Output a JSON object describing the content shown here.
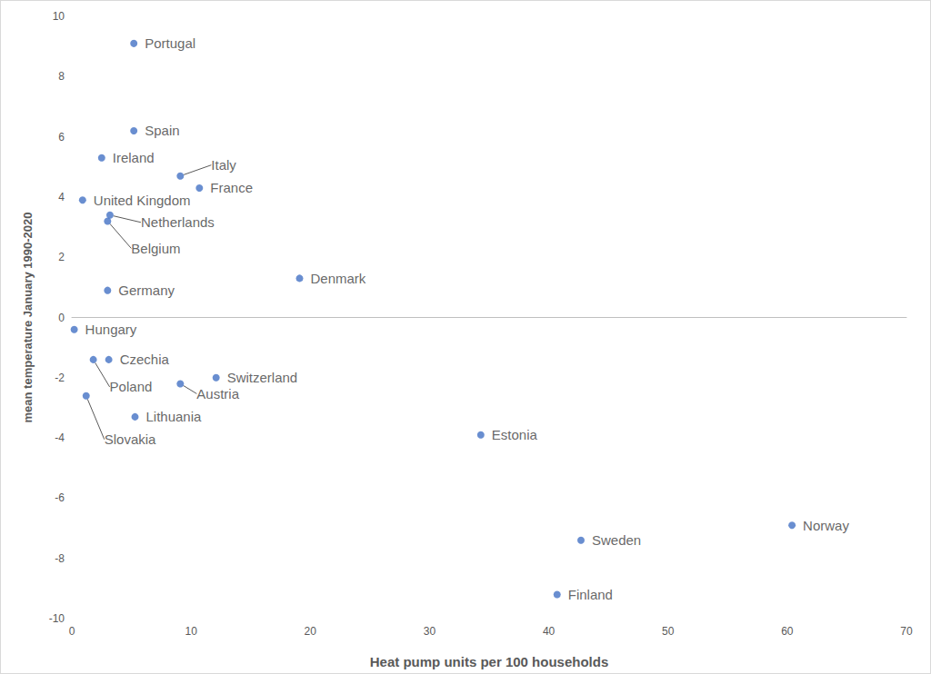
{
  "chart_data": {
    "type": "scatter",
    "x_label": "Heat pump units per 100 households",
    "y_label": "mean temperature January 1990-2020",
    "labels": [
      "Portugal",
      "Spain",
      "Ireland",
      "Italy",
      "France",
      "United Kingdom",
      "Netherlands",
      "Belgium",
      "Germany",
      "Denmark",
      "Hungary",
      "Czechia",
      "Poland",
      "Slovakia",
      "Switzerland",
      "Austria",
      "Lithuania",
      "Estonia",
      "Sweden",
      "Norway",
      "Finland"
    ],
    "x": [
      5.2,
      5.2,
      2.5,
      9.1,
      10.7,
      0.9,
      3.2,
      3.0,
      3.0,
      19.1,
      0.2,
      3.1,
      1.8,
      1.2,
      12.1,
      9.1,
      5.3,
      34.3,
      42.7,
      60.4,
      40.7
    ],
    "values": [
      9.1,
      6.2,
      5.3,
      4.7,
      4.3,
      3.9,
      3.4,
      3.2,
      0.9,
      1.3,
      -0.4,
      -1.4,
      -1.4,
      -2.6,
      -2.0,
      -2.2,
      -3.3,
      -3.9,
      -7.4,
      -6.9,
      -9.2
    ],
    "color": "#4472c4",
    "xlim": [
      0,
      70
    ],
    "xticks": [
      0,
      10,
      20,
      30,
      40,
      50,
      60,
      70
    ],
    "ylim": [
      -10,
      10
    ],
    "yticks": [
      -10,
      -8,
      -6,
      -4,
      -2,
      0,
      2,
      4,
      6,
      8,
      10
    ],
    "grid": false,
    "marker": "circle"
  }
}
